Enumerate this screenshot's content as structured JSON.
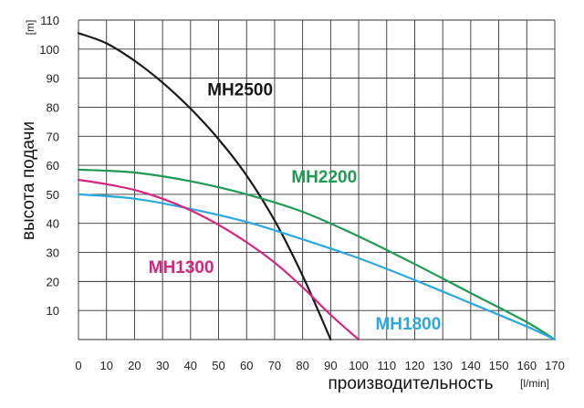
{
  "chart_data": {
    "type": "line",
    "xlabel": "производительность",
    "xunit": "[l/min]",
    "ylabel": "высота подачи",
    "yunit": "[m]",
    "xlim": [
      0,
      170
    ],
    "ylim": [
      0,
      110
    ],
    "xticks": [
      0,
      10,
      20,
      30,
      40,
      50,
      60,
      70,
      80,
      90,
      100,
      110,
      120,
      130,
      140,
      150,
      160,
      170
    ],
    "yticks": [
      10,
      20,
      30,
      40,
      50,
      60,
      70,
      80,
      90,
      100,
      110
    ],
    "grid": true,
    "series": [
      {
        "name": "MH2500",
        "color": "#1a1a1a",
        "points": [
          [
            0,
            105.5
          ],
          [
            10,
            102
          ],
          [
            20,
            96
          ],
          [
            30,
            88.5
          ],
          [
            40,
            79.5
          ],
          [
            50,
            69
          ],
          [
            60,
            56.5
          ],
          [
            70,
            41
          ],
          [
            80,
            22
          ],
          [
            90,
            0
          ]
        ]
      },
      {
        "name": "MH2200",
        "color": "#1e9a52",
        "points": [
          [
            0,
            58.5
          ],
          [
            20,
            57.5
          ],
          [
            40,
            54.5
          ],
          [
            60,
            50
          ],
          [
            80,
            44
          ],
          [
            100,
            35.5
          ],
          [
            120,
            26
          ],
          [
            140,
            16
          ],
          [
            160,
            6
          ],
          [
            170,
            0
          ]
        ]
      },
      {
        "name": "MH1800",
        "color": "#2aa8e0",
        "points": [
          [
            0,
            50
          ],
          [
            20,
            48.5
          ],
          [
            40,
            45
          ],
          [
            60,
            40.5
          ],
          [
            80,
            34.5
          ],
          [
            100,
            28
          ],
          [
            120,
            20.5
          ],
          [
            140,
            12.5
          ],
          [
            160,
            4.5
          ],
          [
            170,
            0
          ]
        ]
      },
      {
        "name": "MH1300",
        "color": "#d4257f",
        "points": [
          [
            0,
            55
          ],
          [
            10,
            53.5
          ],
          [
            20,
            51.5
          ],
          [
            30,
            48.5
          ],
          [
            40,
            44.5
          ],
          [
            50,
            39.5
          ],
          [
            60,
            33.5
          ],
          [
            70,
            26.5
          ],
          [
            80,
            18
          ],
          [
            90,
            8.5
          ],
          [
            100,
            0
          ]
        ]
      }
    ],
    "labels": [
      {
        "text": "MH2500",
        "x": 46,
        "y": 84,
        "color": "#1a1a1a"
      },
      {
        "text": "MH2200",
        "x": 76,
        "y": 54,
        "color": "#1e9a52"
      },
      {
        "text": "MH1300",
        "x": 25,
        "y": 23,
        "color": "#d4257f"
      },
      {
        "text": "MH1800",
        "x": 106,
        "y": 3.5,
        "color": "#2aa8e0"
      }
    ]
  }
}
